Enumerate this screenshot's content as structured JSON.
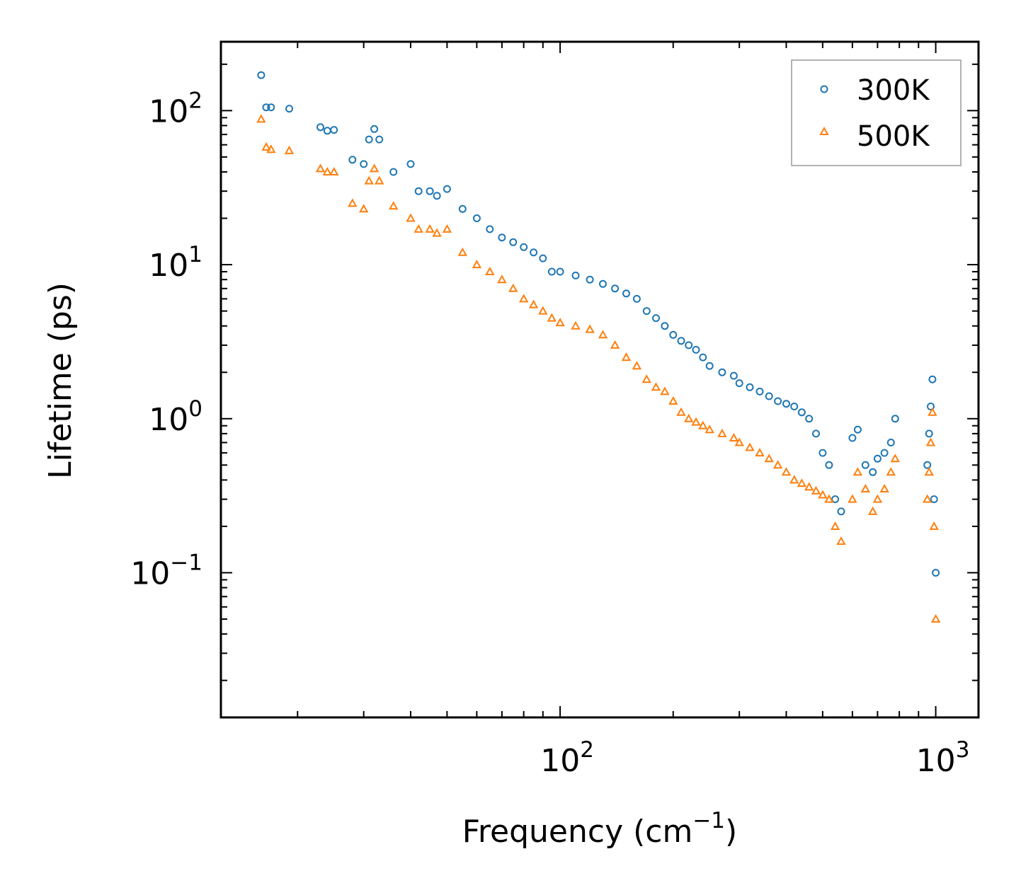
{
  "chart_data": {
    "type": "scatter",
    "xscale": "log",
    "yscale": "log",
    "xlim": [
      12.5,
      1300
    ],
    "ylim": [
      0.0115,
      280
    ],
    "xlabel": {
      "text": "Frequency (cm",
      "sup": "−1",
      "suffix": ")"
    },
    "ylabel": "Lifetime (ps)",
    "x_ticks": [
      {
        "value": 100,
        "base": "10",
        "exp": "2"
      },
      {
        "value": 1000,
        "base": "10",
        "exp": "3"
      }
    ],
    "y_ticks": [
      {
        "value": 0.1,
        "base": "10",
        "exp": "−1"
      },
      {
        "value": 1,
        "base": "10",
        "exp": "0"
      },
      {
        "value": 10,
        "base": "10",
        "exp": "1"
      },
      {
        "value": 100,
        "base": "10",
        "exp": "2"
      }
    ],
    "legend": {
      "position": "top-right"
    },
    "series": [
      {
        "name": "300K",
        "color": "#1f77b4",
        "marker": "circle",
        "x": [
          16,
          16.5,
          17,
          19,
          23,
          24,
          25,
          28,
          30,
          31,
          32,
          33,
          36,
          40,
          42,
          45,
          47,
          50,
          55,
          60,
          65,
          70,
          75,
          80,
          85,
          90,
          95,
          100,
          110,
          120,
          130,
          140,
          150,
          160,
          170,
          180,
          190,
          200,
          210,
          220,
          230,
          240,
          250,
          270,
          290,
          300,
          320,
          340,
          360,
          380,
          400,
          420,
          440,
          460,
          480,
          500,
          520,
          540,
          560,
          600,
          620,
          650,
          680,
          700,
          730,
          760,
          780,
          950,
          960,
          970,
          980,
          990,
          1000
        ],
        "y": [
          170,
          105,
          105,
          103,
          78,
          74,
          75,
          48,
          45,
          65,
          76,
          65,
          40,
          45,
          30,
          30,
          28,
          31,
          23,
          20,
          17,
          15,
          14,
          13,
          12,
          11,
          9,
          9,
          8.5,
          8,
          7.5,
          7,
          6.5,
          6,
          5,
          4.5,
          4,
          3.5,
          3.2,
          3,
          2.8,
          2.5,
          2.2,
          2,
          1.9,
          1.7,
          1.6,
          1.5,
          1.4,
          1.3,
          1.25,
          1.2,
          1.1,
          1.0,
          0.8,
          0.6,
          0.5,
          0.3,
          0.25,
          0.75,
          0.85,
          0.5,
          0.45,
          0.55,
          0.6,
          0.7,
          1.0,
          0.5,
          0.8,
          1.2,
          1.8,
          0.3,
          0.1
        ]
      },
      {
        "name": "500K",
        "color": "#ff7f0e",
        "marker": "triangle",
        "x": [
          16,
          16.5,
          17,
          19,
          23,
          24,
          25,
          28,
          30,
          31,
          32,
          33,
          36,
          40,
          42,
          45,
          47,
          50,
          55,
          60,
          65,
          70,
          75,
          80,
          85,
          90,
          95,
          100,
          110,
          120,
          130,
          140,
          150,
          160,
          170,
          180,
          190,
          200,
          210,
          220,
          230,
          240,
          250,
          270,
          290,
          300,
          320,
          340,
          360,
          380,
          400,
          420,
          440,
          460,
          480,
          500,
          520,
          540,
          560,
          600,
          620,
          650,
          680,
          700,
          730,
          760,
          780,
          950,
          960,
          970,
          980,
          990,
          1000
        ],
        "y": [
          88,
          58,
          56,
          55,
          42,
          40,
          40,
          25,
          23,
          35,
          42,
          35,
          24,
          20,
          17,
          17,
          16,
          17,
          12,
          10,
          9,
          8,
          7,
          6,
          5.5,
          5,
          4.5,
          4.2,
          4,
          3.8,
          3.5,
          3,
          2.5,
          2.2,
          1.8,
          1.6,
          1.5,
          1.3,
          1.1,
          1,
          0.95,
          0.9,
          0.85,
          0.8,
          0.75,
          0.7,
          0.65,
          0.6,
          0.55,
          0.5,
          0.45,
          0.4,
          0.38,
          0.36,
          0.34,
          0.32,
          0.3,
          0.2,
          0.16,
          0.3,
          0.45,
          0.35,
          0.25,
          0.3,
          0.35,
          0.45,
          0.55,
          0.3,
          0.45,
          0.7,
          1.1,
          0.2,
          0.05
        ]
      }
    ]
  }
}
